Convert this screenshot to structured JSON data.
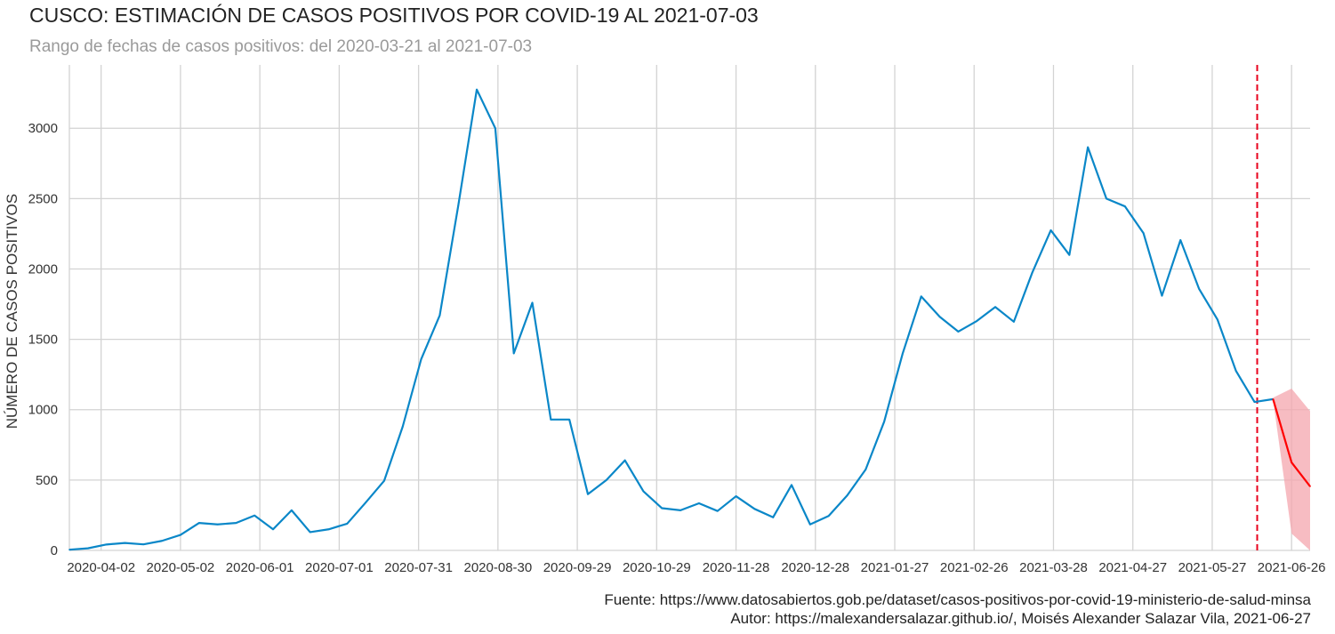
{
  "title": "CUSCO: ESTIMACIÓN DE CASOS POSITIVOS POR COVID-19 AL 2021-07-03",
  "subtitle": "Rango de fechas de casos positivos: del 2020-03-21 al 2021-07-03",
  "footer": {
    "source": "Fuente: https://www.datosabiertos.gob.pe/dataset/casos-positivos-por-covid-19-ministerio-de-salud-minsa",
    "author": "Autor: https://malexandersalazar.github.io/, Moisés Alexander Salazar Vila, 2021-06-27"
  },
  "colors": {
    "series": "#0a87c8",
    "forecast": "#ff0000",
    "band": "#f4a6ae",
    "marker": "#e8001c",
    "grid": "#d3d3d3"
  },
  "chart_data": {
    "type": "line",
    "title": "CUSCO: ESTIMACIÓN DE CASOS POSITIVOS POR COVID-19 AL 2021-07-03",
    "xlabel": "",
    "ylabel": "NÚMERO DE CASOS POSITIVOS",
    "ylim": [
      0,
      3450
    ],
    "xlim": [
      "2020-03-21",
      "2021-07-03"
    ],
    "grid": true,
    "x_tick_labels": [
      "2020-04-02",
      "2020-05-02",
      "2020-06-01",
      "2020-07-01",
      "2020-07-31",
      "2020-08-30",
      "2020-09-29",
      "2020-10-29",
      "2020-11-28",
      "2020-12-28",
      "2021-01-27",
      "2021-02-26",
      "2021-03-28",
      "2021-04-27",
      "2021-05-27",
      "2021-06-26"
    ],
    "y_ticks": [
      0,
      500,
      1000,
      1500,
      2000,
      2500,
      3000
    ],
    "series": [
      {
        "values": [
          [
            "2020-03-21",
            5
          ],
          [
            "2020-03-28",
            15
          ],
          [
            "2020-04-04",
            42
          ],
          [
            "2020-04-11",
            53
          ],
          [
            "2020-04-18",
            43
          ],
          [
            "2020-04-25",
            68
          ],
          [
            "2020-05-02",
            110
          ],
          [
            "2020-05-09",
            195
          ],
          [
            "2020-05-16",
            185
          ],
          [
            "2020-05-23",
            195
          ],
          [
            "2020-05-30",
            248
          ],
          [
            "2020-06-06",
            150
          ],
          [
            "2020-06-13",
            285
          ],
          [
            "2020-06-20",
            130
          ],
          [
            "2020-06-27",
            150
          ],
          [
            "2020-07-04",
            190
          ],
          [
            "2020-07-11",
            340
          ],
          [
            "2020-07-18",
            495
          ],
          [
            "2020-07-25",
            880
          ],
          [
            "2020-08-01",
            1360
          ],
          [
            "2020-08-08",
            1670
          ],
          [
            "2020-08-15",
            2450
          ],
          [
            "2020-08-22",
            3275
          ],
          [
            "2020-08-29",
            3000
          ],
          [
            "2020-09-05",
            1400
          ],
          [
            "2020-09-12",
            1760
          ],
          [
            "2020-09-19",
            930
          ],
          [
            "2020-09-26",
            930
          ],
          [
            "2020-10-03",
            400
          ],
          [
            "2020-10-10",
            500
          ],
          [
            "2020-10-17",
            640
          ],
          [
            "2020-10-24",
            420
          ],
          [
            "2020-10-31",
            300
          ],
          [
            "2020-11-07",
            285
          ],
          [
            "2020-11-14",
            335
          ],
          [
            "2020-11-21",
            280
          ],
          [
            "2020-11-28",
            385
          ],
          [
            "2020-12-05",
            295
          ],
          [
            "2020-12-12",
            235
          ],
          [
            "2020-12-19",
            465
          ],
          [
            "2020-12-26",
            185
          ],
          [
            "2021-01-02",
            245
          ],
          [
            "2021-01-09",
            390
          ],
          [
            "2021-01-16",
            575
          ],
          [
            "2021-01-23",
            915
          ],
          [
            "2021-01-30",
            1400
          ],
          [
            "2021-02-06",
            1805
          ],
          [
            "2021-02-13",
            1660
          ],
          [
            "2021-02-20",
            1555
          ],
          [
            "2021-02-27",
            1630
          ],
          [
            "2021-03-06",
            1730
          ],
          [
            "2021-03-13",
            1625
          ],
          [
            "2021-03-20",
            1975
          ],
          [
            "2021-03-27",
            2275
          ],
          [
            "2021-04-03",
            2100
          ],
          [
            "2021-04-10",
            2865
          ],
          [
            "2021-04-17",
            2500
          ],
          [
            "2021-04-24",
            2445
          ],
          [
            "2021-05-01",
            2255
          ],
          [
            "2021-05-08",
            1810
          ],
          [
            "2021-05-15",
            2205
          ],
          [
            "2021-05-22",
            1860
          ],
          [
            "2021-05-29",
            1640
          ],
          [
            "2021-06-05",
            1275
          ],
          [
            "2021-06-12",
            1055
          ],
          [
            "2021-06-19",
            1075
          ]
        ]
      },
      {
        "values": [
          [
            "2021-06-19",
            1075
          ],
          [
            "2021-06-26",
            625
          ],
          [
            "2021-07-03",
            455
          ]
        ]
      }
    ],
    "confidence_band": [
      [
        "2021-06-19",
        1070,
        1085
      ],
      [
        "2021-06-26",
        120,
        1150
      ],
      [
        "2021-07-03",
        0,
        990
      ]
    ],
    "vertical_line": "2021-06-13"
  }
}
